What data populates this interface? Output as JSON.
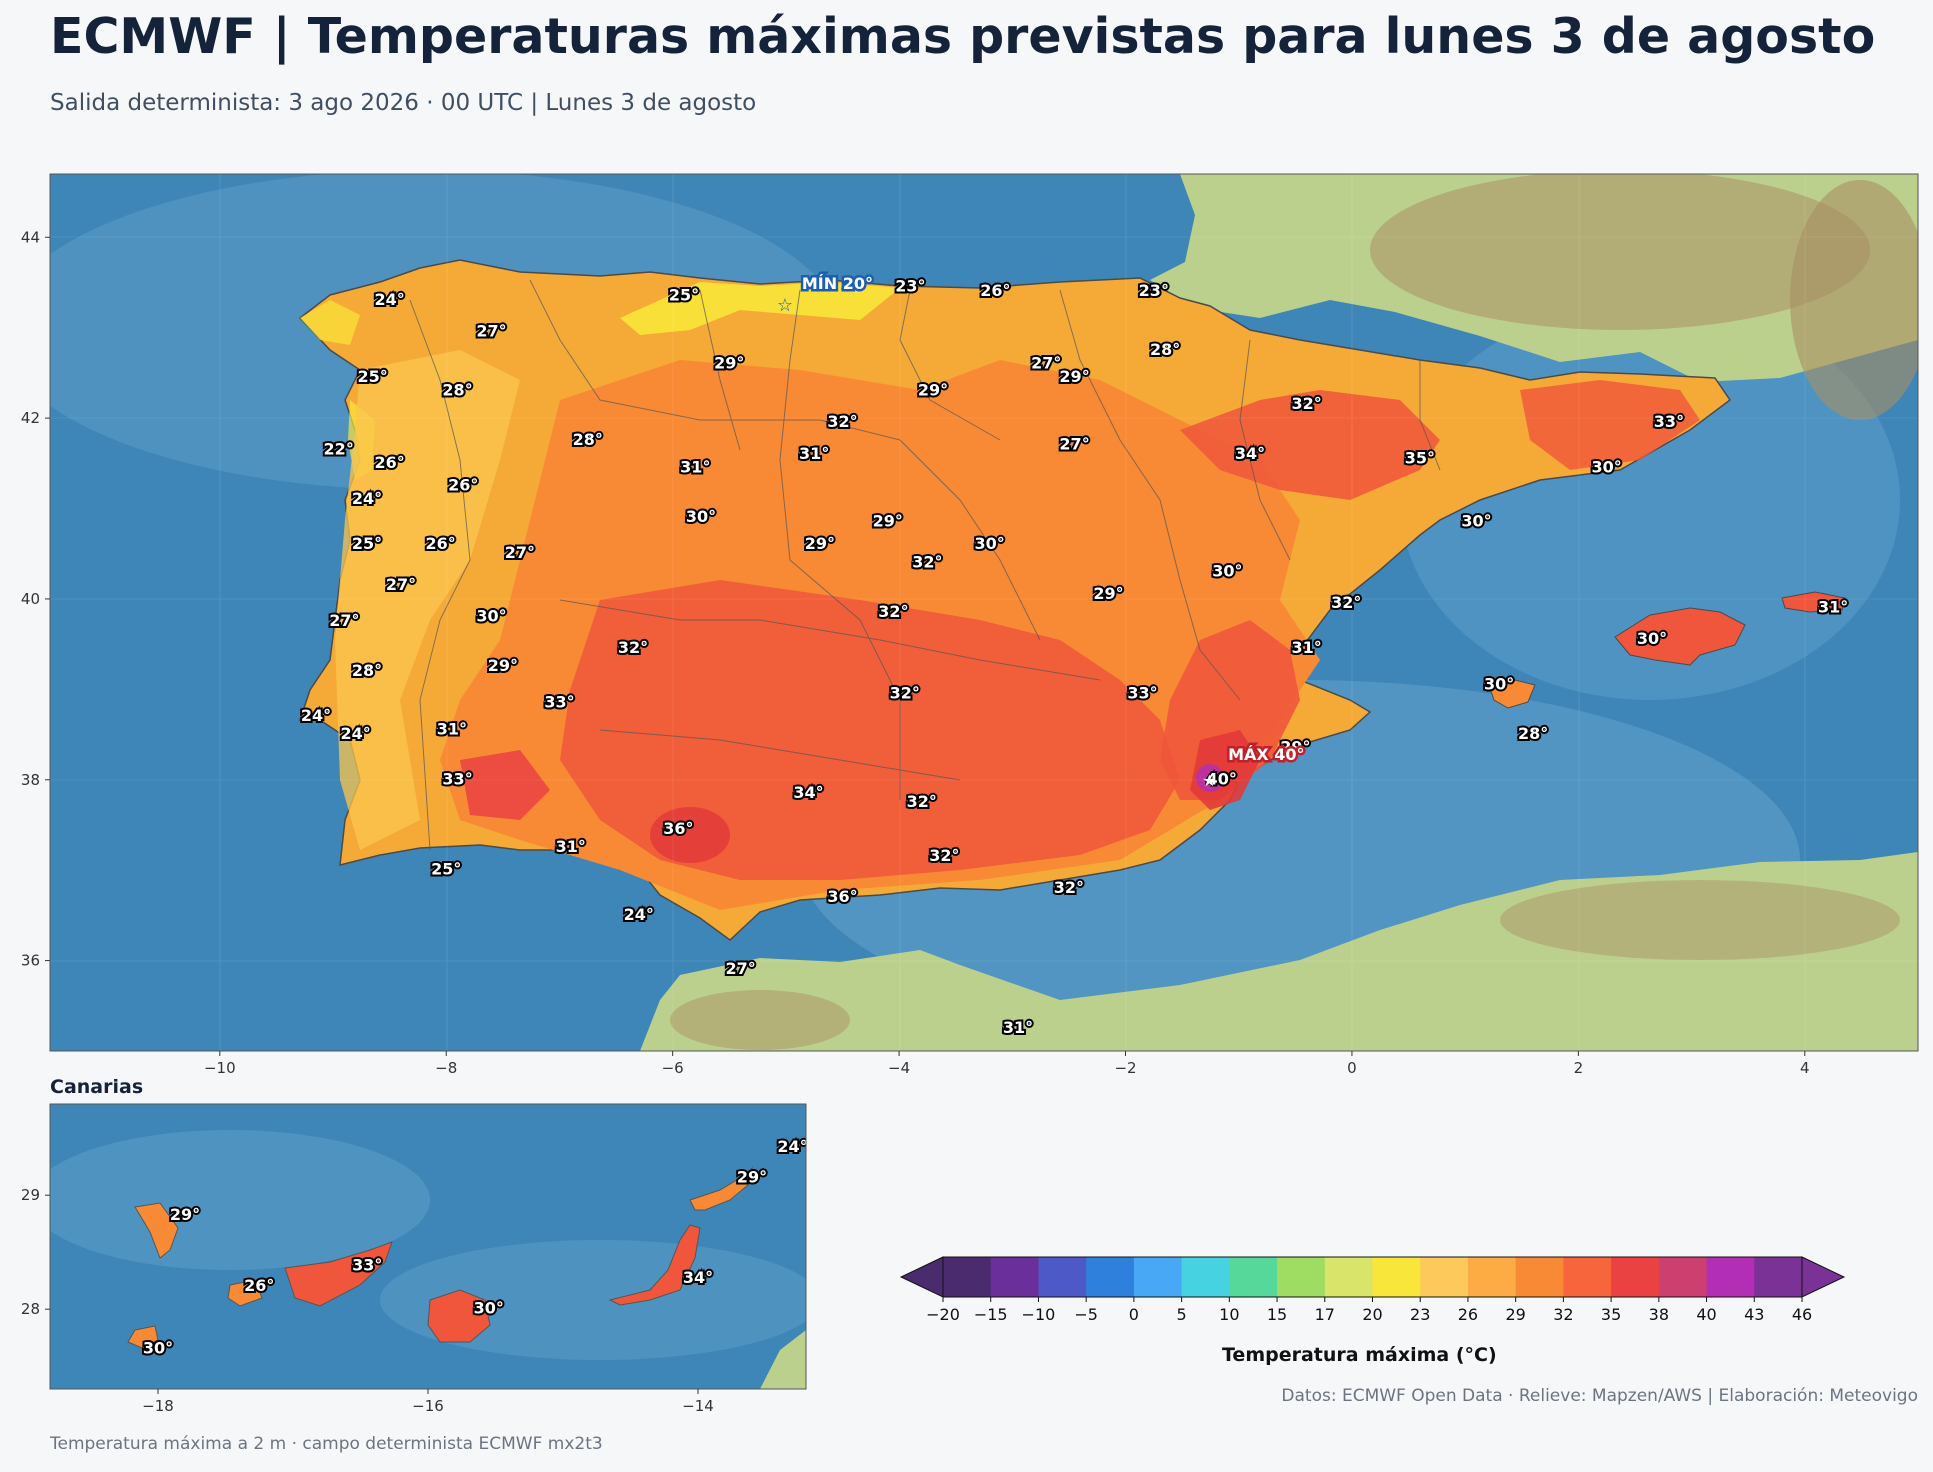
{
  "header": {
    "title": "ECMWF | Temperaturas máximas previstas para lunes 3 de agosto",
    "subtitle": "Salida determinista: 3 ago 2026 · 00 UTC  |  Lunes 3 de agosto"
  },
  "main_map": {
    "lon_range": [
      -11.5,
      5.0
    ],
    "lat_range": [
      35.0,
      44.7
    ],
    "x_ticks": [
      "−10",
      "−8",
      "−6",
      "−4",
      "−2",
      "0",
      "2",
      "4"
    ],
    "y_ticks": [
      "36",
      "38",
      "40",
      "42",
      "44"
    ],
    "max_marker": {
      "label": "MÁX 40°",
      "lon": -1.2,
      "lat": 38.0
    },
    "min_marker": {
      "label": "MÍN 20°",
      "lon": -5.0,
      "lat": 43.25
    },
    "labels": [
      {
        "t": "24°",
        "lon": -8.5,
        "lat": 43.3
      },
      {
        "t": "25°",
        "lon": -5.9,
        "lat": 43.35
      },
      {
        "t": "23°",
        "lon": -3.9,
        "lat": 43.45
      },
      {
        "t": "26°",
        "lon": -3.15,
        "lat": 43.4
      },
      {
        "t": "23°",
        "lon": -1.75,
        "lat": 43.4
      },
      {
        "t": "27°",
        "lon": -7.6,
        "lat": 42.95
      },
      {
        "t": "28°",
        "lon": -1.65,
        "lat": 42.75
      },
      {
        "t": "29°",
        "lon": -5.5,
        "lat": 42.6
      },
      {
        "t": "27°",
        "lon": -2.7,
        "lat": 42.6
      },
      {
        "t": "29°",
        "lon": -2.45,
        "lat": 42.45
      },
      {
        "t": "25°",
        "lon": -8.65,
        "lat": 42.45
      },
      {
        "t": "28°",
        "lon": -7.9,
        "lat": 42.3
      },
      {
        "t": "29°",
        "lon": -3.7,
        "lat": 42.3
      },
      {
        "t": "32°",
        "lon": -0.4,
        "lat": 42.15
      },
      {
        "t": "33°",
        "lon": 2.8,
        "lat": 41.95
      },
      {
        "t": "32°",
        "lon": -4.5,
        "lat": 41.95
      },
      {
        "t": "28°",
        "lon": -6.75,
        "lat": 41.75
      },
      {
        "t": "27°",
        "lon": -2.45,
        "lat": 41.7
      },
      {
        "t": "22°",
        "lon": -8.95,
        "lat": 41.65
      },
      {
        "t": "31°",
        "lon": -4.75,
        "lat": 41.6
      },
      {
        "t": "34°",
        "lon": -0.9,
        "lat": 41.6
      },
      {
        "t": "35°",
        "lon": 0.6,
        "lat": 41.55
      },
      {
        "t": "26°",
        "lon": -8.5,
        "lat": 41.5
      },
      {
        "t": "31°",
        "lon": -5.8,
        "lat": 41.45
      },
      {
        "t": "30°",
        "lon": 2.25,
        "lat": 41.45
      },
      {
        "t": "26°",
        "lon": -7.85,
        "lat": 41.25
      },
      {
        "t": "24°",
        "lon": -8.7,
        "lat": 41.1
      },
      {
        "t": "30°",
        "lon": -5.75,
        "lat": 40.9
      },
      {
        "t": "29°",
        "lon": -4.1,
        "lat": 40.85
      },
      {
        "t": "30°",
        "lon": 1.1,
        "lat": 40.85
      },
      {
        "t": "25°",
        "lon": -8.7,
        "lat": 40.6
      },
      {
        "t": "26°",
        "lon": -8.05,
        "lat": 40.6
      },
      {
        "t": "29°",
        "lon": -4.7,
        "lat": 40.6
      },
      {
        "t": "30°",
        "lon": -3.2,
        "lat": 40.6
      },
      {
        "t": "27°",
        "lon": -7.35,
        "lat": 40.5
      },
      {
        "t": "32°",
        "lon": -3.75,
        "lat": 40.4
      },
      {
        "t": "30°",
        "lon": -1.1,
        "lat": 40.3
      },
      {
        "t": "27°",
        "lon": -8.4,
        "lat": 40.15
      },
      {
        "t": "29°",
        "lon": -2.15,
        "lat": 40.05
      },
      {
        "t": "32°",
        "lon": -0.05,
        "lat": 39.95
      },
      {
        "t": "32°",
        "lon": -4.05,
        "lat": 39.85
      },
      {
        "t": "30°",
        "lon": -7.6,
        "lat": 39.8
      },
      {
        "t": "27°",
        "lon": -8.9,
        "lat": 39.75
      },
      {
        "t": "30°",
        "lon": 2.65,
        "lat": 39.55
      },
      {
        "t": "31°",
        "lon": 4.25,
        "lat": 39.9
      },
      {
        "t": "32°",
        "lon": -6.35,
        "lat": 39.45
      },
      {
        "t": "31°",
        "lon": -0.4,
        "lat": 39.45
      },
      {
        "t": "29°",
        "lon": -7.5,
        "lat": 39.25
      },
      {
        "t": "28°",
        "lon": -8.7,
        "lat": 39.2
      },
      {
        "t": "30°",
        "lon": 1.3,
        "lat": 39.05
      },
      {
        "t": "32°",
        "lon": -3.95,
        "lat": 38.95
      },
      {
        "t": "33°",
        "lon": -1.85,
        "lat": 38.95
      },
      {
        "t": "33°",
        "lon": -7.0,
        "lat": 38.85
      },
      {
        "t": "24°",
        "lon": -9.15,
        "lat": 38.7
      },
      {
        "t": "24°",
        "lon": -8.8,
        "lat": 38.5
      },
      {
        "t": "31°",
        "lon": -7.95,
        "lat": 38.55
      },
      {
        "t": "28°",
        "lon": 1.6,
        "lat": 38.5
      },
      {
        "t": "29°",
        "lon": -0.5,
        "lat": 38.35
      },
      {
        "t": "33°",
        "lon": -7.9,
        "lat": 38.0
      },
      {
        "t": "40°",
        "lon": -1.15,
        "lat": 38.0
      },
      {
        "t": "34°",
        "lon": -4.8,
        "lat": 37.85
      },
      {
        "t": "32°",
        "lon": -3.8,
        "lat": 37.75
      },
      {
        "t": "36°",
        "lon": -5.95,
        "lat": 37.45
      },
      {
        "t": "31°",
        "lon": -6.9,
        "lat": 37.25
      },
      {
        "t": "32°",
        "lon": -3.6,
        "lat": 37.15
      },
      {
        "t": "25°",
        "lon": -8.0,
        "lat": 37.0
      },
      {
        "t": "32°",
        "lon": -2.5,
        "lat": 36.8
      },
      {
        "t": "36°",
        "lon": -4.5,
        "lat": 36.7
      },
      {
        "t": "24°",
        "lon": -6.3,
        "lat": 36.5
      },
      {
        "t": "27°",
        "lon": -5.4,
        "lat": 35.9
      },
      {
        "t": "31°",
        "lon": -2.95,
        "lat": 35.25
      }
    ]
  },
  "inset_canarias": {
    "title": "Canarias",
    "lon_range": [
      -18.8,
      -13.2
    ],
    "lat_range": [
      27.3,
      29.8
    ],
    "x_ticks": [
      "−18",
      "−16",
      "−14"
    ],
    "y_ticks": [
      "28",
      "29"
    ],
    "labels": [
      {
        "t": "29°",
        "lon": -17.8,
        "lat": 28.82
      },
      {
        "t": "26°",
        "lon": -17.25,
        "lat": 28.2
      },
      {
        "t": "33°",
        "lon": -16.45,
        "lat": 28.38
      },
      {
        "t": "30°",
        "lon": -15.55,
        "lat": 28.0
      },
      {
        "t": "34°",
        "lon": -14.0,
        "lat": 28.27
      },
      {
        "t": "29°",
        "lon": -13.6,
        "lat": 29.15
      },
      {
        "t": "24°",
        "lon": -13.3,
        "lat": 29.42
      },
      {
        "t": "30°",
        "lon": -18.0,
        "lat": 27.65
      }
    ]
  },
  "colorbar": {
    "label": "Temperatura máxima (°C)",
    "ticks": [
      "−20",
      "−15",
      "−10",
      "−5",
      "0",
      "5",
      "10",
      "15",
      "17",
      "20",
      "23",
      "26",
      "29",
      "32",
      "35",
      "38",
      "40",
      "43",
      "46"
    ],
    "colors": [
      "#4a2c6e",
      "#6a2f9a",
      "#4d59c6",
      "#2f7fdc",
      "#48a8f5",
      "#46d2e0",
      "#56d89a",
      "#9fdc62",
      "#d8e46a",
      "#f9e63a",
      "#fcc95a",
      "#fcab45",
      "#f98a35",
      "#f6653c",
      "#ea4242",
      "#cc3f6e",
      "#b22eb4",
      "#7a3296"
    ]
  },
  "credits": "Datos: ECMWF Open Data · Relieve: Mapzen/AWS  |  Elaboración: Meteovigo",
  "footer": "Temperatura máxima a 2 m · campo determinista ECMWF mx2t3"
}
